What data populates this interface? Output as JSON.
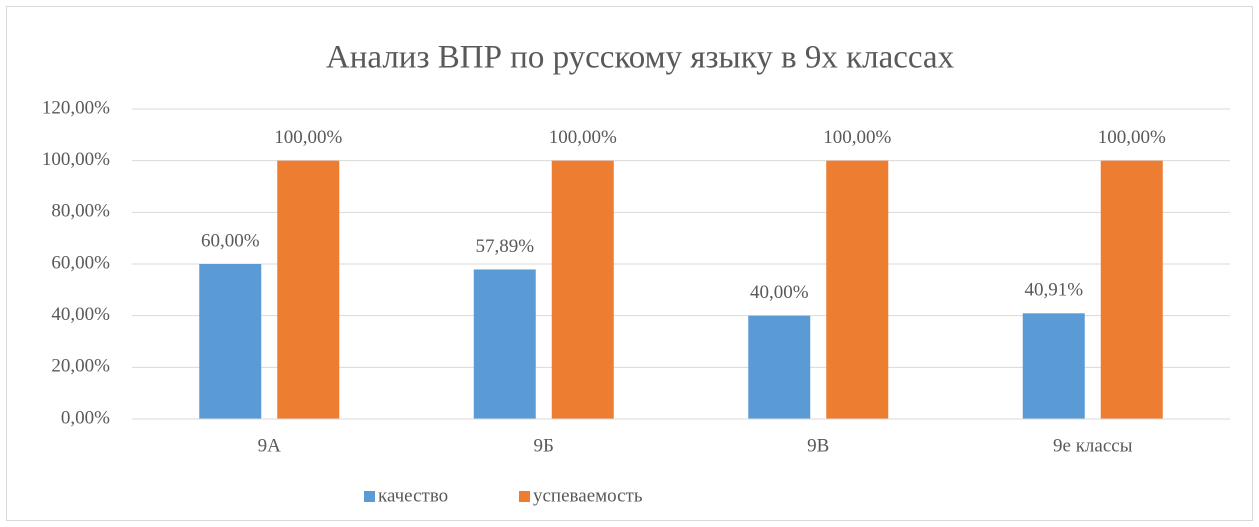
{
  "chart_data": {
    "type": "bar",
    "title": "Анализ ВПР по русскому языку в 9х классах",
    "categories": [
      "9А",
      "9Б",
      "9В",
      "9е классы"
    ],
    "series": [
      {
        "name": "качество",
        "color": "#5b9bd5",
        "values": [
          60,
          57.89,
          40,
          40.91
        ],
        "value_labels": [
          "60,00%",
          "57,89%",
          "40,00%",
          "40,91%"
        ]
      },
      {
        "name": "успеваемость",
        "color": "#ed7d31",
        "values": [
          100,
          100,
          100,
          100
        ],
        "value_labels": [
          "100,00%",
          "100,00%",
          "100,00%",
          "100,00%"
        ]
      }
    ],
    "ylim": [
      0,
      120
    ],
    "yticks": [
      {
        "value": 0,
        "label": "0,00%"
      },
      {
        "value": 20,
        "label": "20,00%"
      },
      {
        "value": 40,
        "label": "40,00%"
      },
      {
        "value": 60,
        "label": "60,00%"
      },
      {
        "value": 80,
        "label": "80,00%"
      },
      {
        "value": 100,
        "label": "100,00%"
      },
      {
        "value": 120,
        "label": "120,00%"
      }
    ],
    "grid": true,
    "legend": "bottom"
  }
}
